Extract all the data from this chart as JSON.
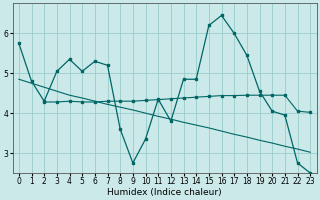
{
  "xlabel": "Humidex (Indice chaleur)",
  "bg_color": "#cce9e9",
  "grid_color": "#99cccc",
  "line_color": "#006666",
  "xlim": [
    -0.5,
    23.5
  ],
  "ylim": [
    2.5,
    6.75
  ],
  "yticks": [
    3,
    4,
    5,
    6
  ],
  "xticks": [
    0,
    1,
    2,
    3,
    4,
    5,
    6,
    7,
    8,
    9,
    10,
    11,
    12,
    13,
    14,
    15,
    16,
    17,
    18,
    19,
    20,
    21,
    22,
    23
  ],
  "line1_x": [
    0,
    1,
    2,
    3,
    4,
    5,
    6,
    7,
    8,
    9,
    10,
    11,
    12,
    13,
    14,
    15,
    16,
    17,
    18,
    19,
    20,
    21,
    22,
    23
  ],
  "line1_y": [
    5.75,
    4.8,
    4.3,
    5.05,
    5.35,
    5.05,
    5.3,
    5.2,
    3.6,
    2.75,
    3.35,
    4.35,
    3.8,
    4.85,
    4.85,
    6.2,
    6.45,
    6.0,
    5.45,
    4.55,
    4.05,
    3.95,
    2.75,
    2.5
  ],
  "line2_x": [
    0,
    1,
    2,
    3,
    4,
    5,
    6,
    7,
    8,
    9,
    10,
    11,
    12,
    13,
    14,
    15,
    16,
    17,
    18,
    19,
    20,
    21,
    22,
    23
  ],
  "line2_y": [
    4.85,
    4.75,
    4.65,
    4.55,
    4.45,
    4.38,
    4.3,
    4.22,
    4.15,
    4.08,
    4.0,
    3.92,
    3.85,
    3.77,
    3.7,
    3.63,
    3.55,
    3.47,
    3.4,
    3.32,
    3.25,
    3.17,
    3.1,
    3.02
  ],
  "line3_x": [
    2,
    3,
    4,
    5,
    6,
    7,
    8,
    9,
    10,
    11,
    12,
    13,
    14,
    15,
    16,
    17,
    18,
    19,
    20,
    21,
    22,
    23
  ],
  "line3_y": [
    4.28,
    4.28,
    4.3,
    4.28,
    4.28,
    4.3,
    4.3,
    4.3,
    4.32,
    4.34,
    4.36,
    4.38,
    4.4,
    4.42,
    4.44,
    4.44,
    4.45,
    4.45,
    4.45,
    4.45,
    4.05,
    4.02
  ]
}
